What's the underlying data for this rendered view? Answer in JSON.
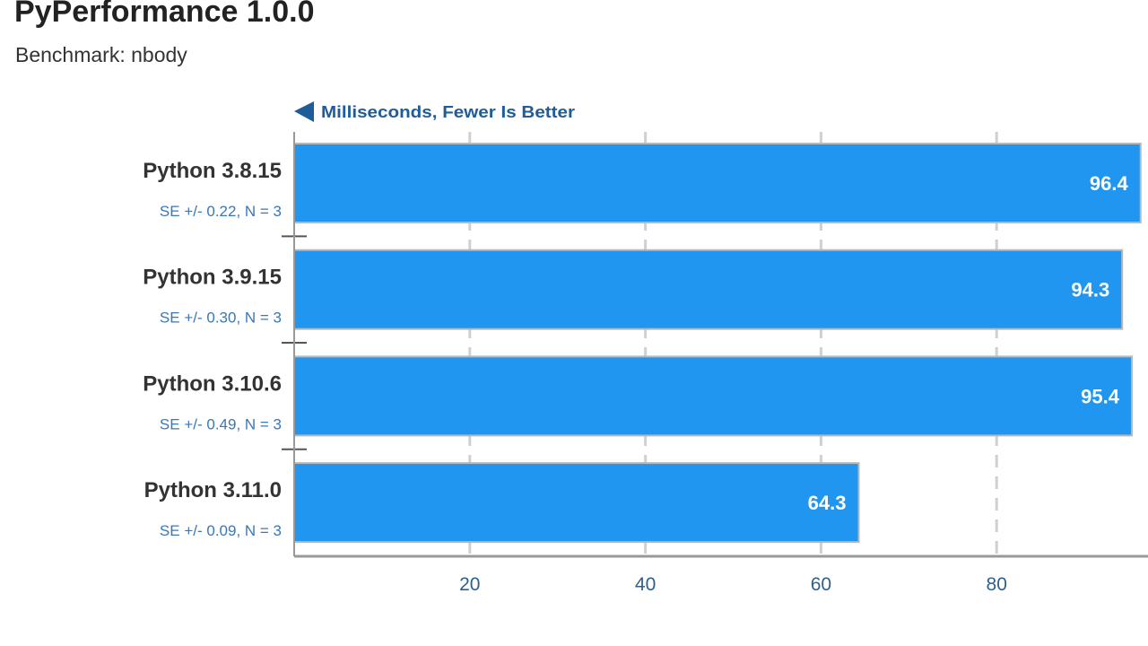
{
  "header": {
    "title": "PyPerformance 1.0.0",
    "subtitle": "Benchmark: nbody"
  },
  "chart_data": {
    "type": "bar",
    "orientation": "horizontal",
    "direction_note": "Milliseconds, Fewer Is Better",
    "categories": [
      "Python 3.8.15",
      "Python 3.9.15",
      "Python 3.10.6",
      "Python 3.11.0"
    ],
    "values": [
      96.4,
      94.3,
      95.4,
      64.3
    ],
    "value_labels": [
      "96.4",
      "94.3",
      "95.4",
      "64.3"
    ],
    "error_labels": [
      "SE +/- 0.22, N = 3",
      "SE +/- 0.30, N = 3",
      "SE +/- 0.49, N = 3",
      "SE +/- 0.09, N = 3"
    ],
    "xticks": [
      20,
      40,
      60,
      80
    ],
    "xlim": [
      0,
      97.2
    ],
    "grid": true,
    "colors": {
      "bar": "#2196f0",
      "bar_border": "#b8b8b8",
      "label": "#333333",
      "error_label": "#3a78b5",
      "tick": "#2d5f8f",
      "note": "#1f5c99",
      "grid": "#d0d0d0",
      "axis": "#999999"
    }
  }
}
